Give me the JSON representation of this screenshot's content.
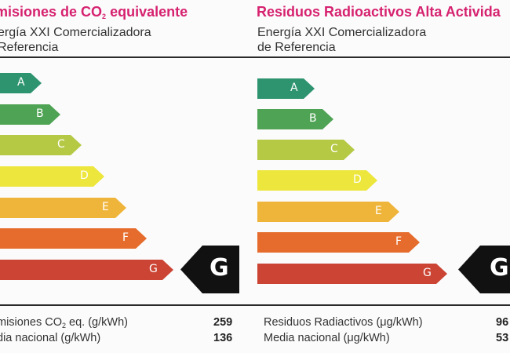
{
  "left_panel": {
    "title_pre": "misiones de CO",
    "title_sub": "2",
    "title_post": " equivalente",
    "subtitle_line1": "ergía XXI Comercializadora",
    "subtitle_line2": " Referencia",
    "classes": [
      "A",
      "B",
      "C",
      "D",
      "E",
      "F",
      "G"
    ],
    "rating": "G",
    "rows": [
      {
        "label_pre": "misiones CO",
        "label_sub": "2",
        "label_post": " eq. (g/kWh)",
        "value": "259"
      },
      {
        "label": "dia nacional (g/kWh)",
        "value": "136"
      }
    ]
  },
  "right_panel": {
    "title": "Residuos Radioactivos Alta Activida",
    "subtitle_line1": "Energía XXI Comercializadora",
    "subtitle_line2": "de Referencia",
    "classes": [
      "A",
      "B",
      "C",
      "D",
      "E",
      "F",
      "G"
    ],
    "rating": "G",
    "rows": [
      {
        "label": "Residuos Radiactivos (μg/kWh)",
        "value": "96"
      },
      {
        "label": "Media nacional (μg/kWh)",
        "value": "53"
      }
    ]
  },
  "colors": {
    "title": "#d6226f",
    "A": "#2e9470",
    "B": "#4fa354",
    "C": "#b6c944",
    "D": "#ede63c",
    "E": "#efb43a",
    "F": "#e56c2c",
    "G": "#cb4434",
    "marker": "#111111"
  }
}
